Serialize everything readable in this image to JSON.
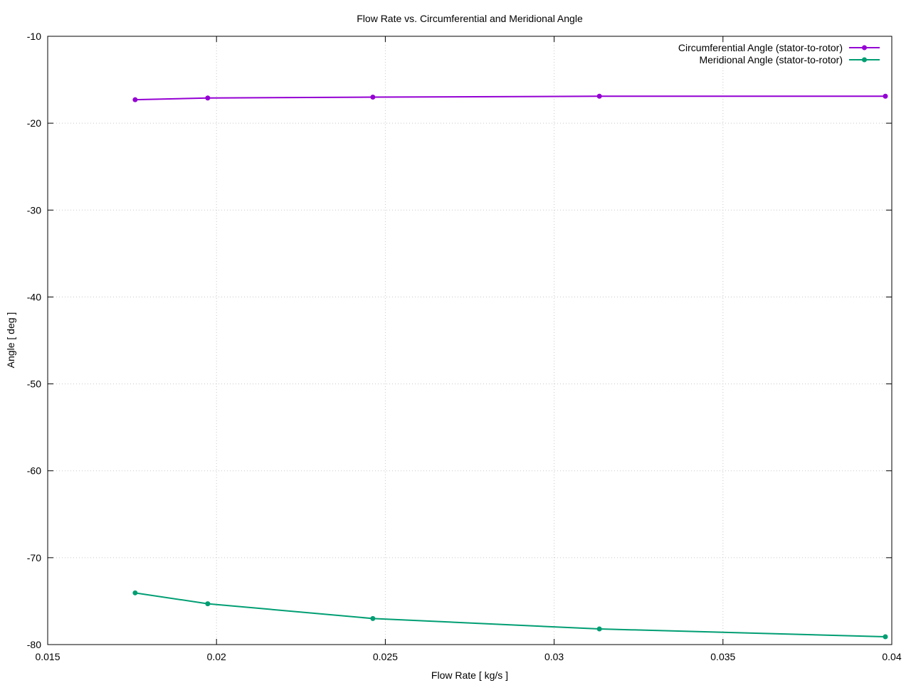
{
  "chart_data": {
    "type": "line",
    "title": "Flow Rate vs. Circumferential and Meridional Angle",
    "xlabel": "Flow Rate [ kg/s ]",
    "ylabel": "Angle [ deg ]",
    "xlim": [
      0.015,
      0.04
    ],
    "ylim": [
      -80,
      -10
    ],
    "xticks": [
      "0.015",
      "0.02",
      "0.025",
      "0.03",
      "0.035",
      "0.04"
    ],
    "yticks": [
      "-10",
      "-20",
      "-30",
      "-40",
      "-50",
      "-60",
      "-70",
      "-80"
    ],
    "grid": true,
    "legend_position": "top-right",
    "x": [
      0.01759,
      0.01974,
      0.02463,
      0.03134,
      0.03981
    ],
    "series": [
      {
        "name": "Circumferential Angle (stator-to-rotor)",
        "color": "#9400d3",
        "values": [
          -17.3,
          -17.1,
          -17.0,
          -16.9,
          -16.9
        ]
      },
      {
        "name": "Meridional Angle (stator-to-rotor)",
        "color": "#009e73",
        "values": [
          -74.05,
          -75.3,
          -77.0,
          -78.2,
          -79.1
        ]
      }
    ]
  }
}
